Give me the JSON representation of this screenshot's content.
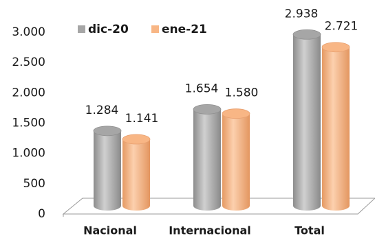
{
  "chart_data": {
    "type": "bar3d",
    "categories": [
      "Nacional",
      "Internacional",
      "Total"
    ],
    "series": [
      {
        "name": "dic-20",
        "color": "#a6a6a6",
        "values": [
          1284,
          1654,
          2938
        ],
        "value_labels": [
          "1.284",
          "1.654",
          "2.938"
        ]
      },
      {
        "name": "ene-21",
        "color": "#f8b685",
        "values": [
          1141,
          1580,
          2721
        ],
        "value_labels": [
          "1.141",
          "1.580",
          "2.721"
        ]
      }
    ],
    "ylim": [
      0,
      3000
    ],
    "yticks": [
      0,
      500,
      {
        "value": 1000,
        "label": "1.000"
      },
      {
        "value": 1500,
        "label": "1.500"
      },
      {
        "value": 2000,
        "label": "2.000"
      },
      {
        "value": 2500,
        "label": "2.500"
      },
      {
        "value": 3000,
        "label": "3.000"
      }
    ],
    "legend": "top"
  }
}
